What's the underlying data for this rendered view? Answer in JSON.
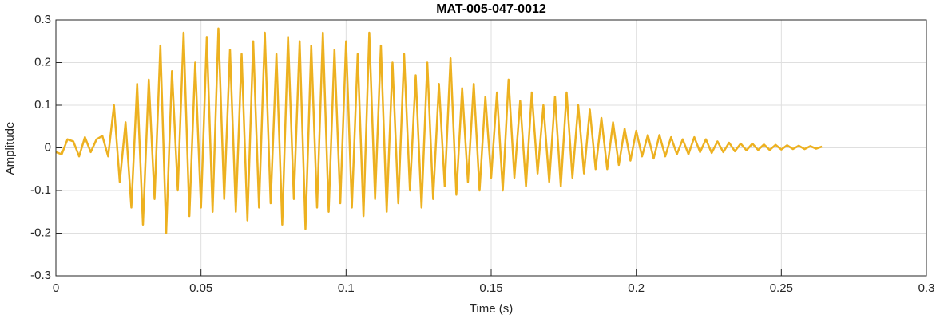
{
  "chart_data": {
    "type": "line",
    "title": "MAT-005-047-0012",
    "x_label": "Time (s)",
    "y_label": "Amplitude",
    "color": "#edb120",
    "grid": true,
    "xlim": [
      0,
      0.3
    ],
    "xticks": [
      0,
      0.05,
      0.1,
      0.15,
      0.2,
      0.25,
      0.3
    ],
    "ylim": [
      -0.3,
      0.3
    ],
    "yticks": [
      -0.3,
      -0.2,
      -0.1,
      0,
      0.1,
      0.2,
      0.3
    ],
    "x": [
      0,
      0.002,
      0.004,
      0.006,
      0.008,
      0.01,
      0.012,
      0.014,
      0.016,
      0.018,
      0.02,
      0.022,
      0.024,
      0.026,
      0.028,
      0.03,
      0.032,
      0.034,
      0.036,
      0.038,
      0.04,
      0.042,
      0.044,
      0.046,
      0.048,
      0.05,
      0.052,
      0.054,
      0.056,
      0.058,
      0.06,
      0.062,
      0.064,
      0.066,
      0.068,
      0.07,
      0.072,
      0.074,
      0.076,
      0.078,
      0.08,
      0.082,
      0.084,
      0.086,
      0.088,
      0.09,
      0.092,
      0.094,
      0.096,
      0.098,
      0.1,
      0.102,
      0.104,
      0.106,
      0.108,
      0.11,
      0.112,
      0.114,
      0.116,
      0.118,
      0.12,
      0.122,
      0.124,
      0.126,
      0.128,
      0.13,
      0.132,
      0.134,
      0.136,
      0.138,
      0.14,
      0.142,
      0.144,
      0.146,
      0.148,
      0.15,
      0.152,
      0.154,
      0.156,
      0.158,
      0.16,
      0.162,
      0.164,
      0.166,
      0.168,
      0.17,
      0.172,
      0.174,
      0.176,
      0.178,
      0.18,
      0.182,
      0.184,
      0.186,
      0.188,
      0.19,
      0.192,
      0.194,
      0.196,
      0.198,
      0.2,
      0.202,
      0.204,
      0.206,
      0.208,
      0.21,
      0.212,
      0.214,
      0.216,
      0.218,
      0.22,
      0.222,
      0.224,
      0.226,
      0.228,
      0.23,
      0.232,
      0.234,
      0.236,
      0.238,
      0.24,
      0.242,
      0.244,
      0.246,
      0.248,
      0.25,
      0.252,
      0.254,
      0.256,
      0.258,
      0.26,
      0.262,
      0.264
    ],
    "values": [
      -0.01,
      -0.015,
      0.02,
      0.015,
      -0.02,
      0.025,
      -0.01,
      0.02,
      0.028,
      -0.02,
      0.1,
      -0.08,
      0.06,
      -0.14,
      0.15,
      -0.18,
      0.16,
      -0.12,
      0.24,
      -0.2,
      0.18,
      -0.1,
      0.27,
      -0.16,
      0.2,
      -0.14,
      0.26,
      -0.15,
      0.28,
      -0.12,
      0.23,
      -0.15,
      0.22,
      -0.17,
      0.25,
      -0.14,
      0.27,
      -0.13,
      0.22,
      -0.18,
      0.26,
      -0.12,
      0.25,
      -0.19,
      0.24,
      -0.14,
      0.27,
      -0.15,
      0.23,
      -0.13,
      0.25,
      -0.14,
      0.22,
      -0.16,
      0.27,
      -0.12,
      0.24,
      -0.15,
      0.2,
      -0.13,
      0.22,
      -0.1,
      0.17,
      -0.14,
      0.2,
      -0.12,
      0.15,
      -0.09,
      0.21,
      -0.11,
      0.14,
      -0.08,
      0.15,
      -0.1,
      0.12,
      -0.07,
      0.13,
      -0.1,
      0.16,
      -0.07,
      0.11,
      -0.09,
      0.13,
      -0.06,
      0.1,
      -0.08,
      0.12,
      -0.09,
      0.13,
      -0.07,
      0.1,
      -0.06,
      0.09,
      -0.05,
      0.07,
      -0.05,
      0.06,
      -0.04,
      0.045,
      -0.03,
      0.04,
      -0.02,
      0.03,
      -0.025,
      0.03,
      -0.02,
      0.025,
      -0.015,
      0.02,
      -0.015,
      0.025,
      -0.01,
      0.02,
      -0.012,
      0.015,
      -0.01,
      0.012,
      -0.008,
      0.01,
      -0.006,
      0.01,
      -0.005,
      0.008,
      -0.005,
      0.007,
      -0.004,
      0.006,
      -0.003,
      0.005,
      -0.003,
      0.004,
      -0.002,
      0.003
    ]
  }
}
